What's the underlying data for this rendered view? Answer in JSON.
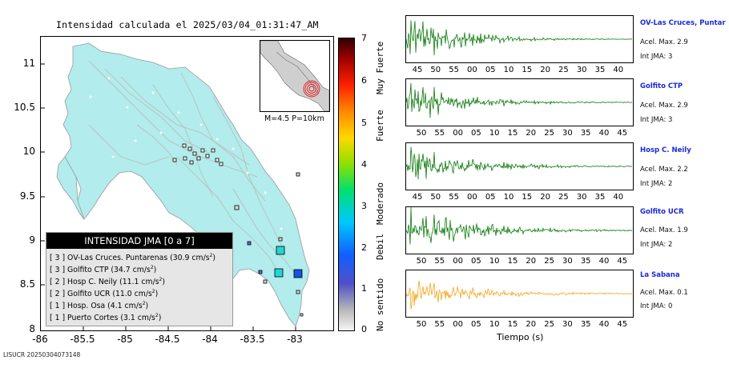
{
  "map": {
    "title": "Intensidad calculada el 2025/03/04_01:31:47_AM",
    "yticks": [
      "11",
      "10.5",
      "10",
      "9.5",
      "9",
      "8.5",
      "8"
    ],
    "xticks": [
      "-86",
      "-85.5",
      "-85",
      "-84.5",
      "-84",
      "-83.5",
      "-83"
    ],
    "inset_label": "M=4.5 P=10km",
    "footer_id": "LISUCR 20250304073148"
  },
  "legend": {
    "header": "INTENSIDAD JMA [0 a 7]",
    "rows": [
      {
        "text": "[ 3 ]  OV-Las Cruces. Puntarenas (30.9 cm/s",
        "sup": "2",
        "tail": ")"
      },
      {
        "text": "[ 3 ]  Golfito CTP (34.7 cm/s",
        "sup": "2",
        "tail": ")"
      },
      {
        "text": "[ 2 ]  Hosp C. Neily (11.1 cm/s",
        "sup": "2",
        "tail": ")"
      },
      {
        "text": "[ 2 ]  Golfito UCR (11.0 cm/s",
        "sup": "2",
        "tail": ")"
      },
      {
        "text": "[ 1 ]  Hosp. Osa (4.1 cm/s",
        "sup": "2",
        "tail": ")"
      },
      {
        "text": "[ 1 ]  Puerto Cortes (3.1 cm/s",
        "sup": "2",
        "tail": ")"
      }
    ]
  },
  "colorbar": {
    "numbers": [
      "7",
      "6",
      "5",
      "4",
      "3",
      "2",
      "1",
      "0"
    ],
    "words": [
      "Muy Fuerte",
      "Fuerte",
      "Moderado",
      "Debil",
      "No sentido"
    ]
  },
  "stations": [
    {
      "name": "OV-Las Cruces, Puntar",
      "acel": "Acel. Max. 2.9",
      "int": "Int JMA: 3",
      "color": "#0b7a0b",
      "ticks": [
        "45",
        "50",
        "55",
        "00",
        "05",
        "10",
        "15",
        "20",
        "25",
        "30",
        "35",
        "40"
      ]
    },
    {
      "name": "Golfito CTP",
      "acel": "Acel. Max. 2.9",
      "int": "Int JMA: 3",
      "color": "#0b7a0b",
      "ticks": [
        "50",
        "55",
        "00",
        "05",
        "10",
        "15",
        "20",
        "25",
        "30",
        "35",
        "40",
        "45"
      ]
    },
    {
      "name": "Hosp C. Neily",
      "acel": "Acel. Max. 2.2",
      "int": "Int JMA: 2",
      "color": "#0b7a0b",
      "ticks": [
        "45",
        "50",
        "55",
        "00",
        "05",
        "10",
        "15",
        "20",
        "25",
        "30",
        "35",
        "40"
      ]
    },
    {
      "name": "Golfito UCR",
      "acel": "Acel. Max. 1.9",
      "int": "Int JMA: 2",
      "color": "#0b7a0b",
      "ticks": [
        "50",
        "55",
        "00",
        "05",
        "10",
        "15",
        "20",
        "25",
        "30",
        "35",
        "40",
        "45"
      ]
    },
    {
      "name": "La Sabana",
      "acel": "Acel. Max. 0.1",
      "int": "Int JMA: 0",
      "color": "#f4a41c",
      "ticks": [
        "50",
        "55",
        "00",
        "05",
        "10",
        "15",
        "20",
        "25",
        "30",
        "35",
        "40",
        "45"
      ]
    }
  ],
  "time_axis_label": "Tiempo (s)",
  "colors": {
    "land": "#b2ecec",
    "sea": "#ffffff",
    "road": "#b9b9b9",
    "epicenter": "#e02020"
  }
}
